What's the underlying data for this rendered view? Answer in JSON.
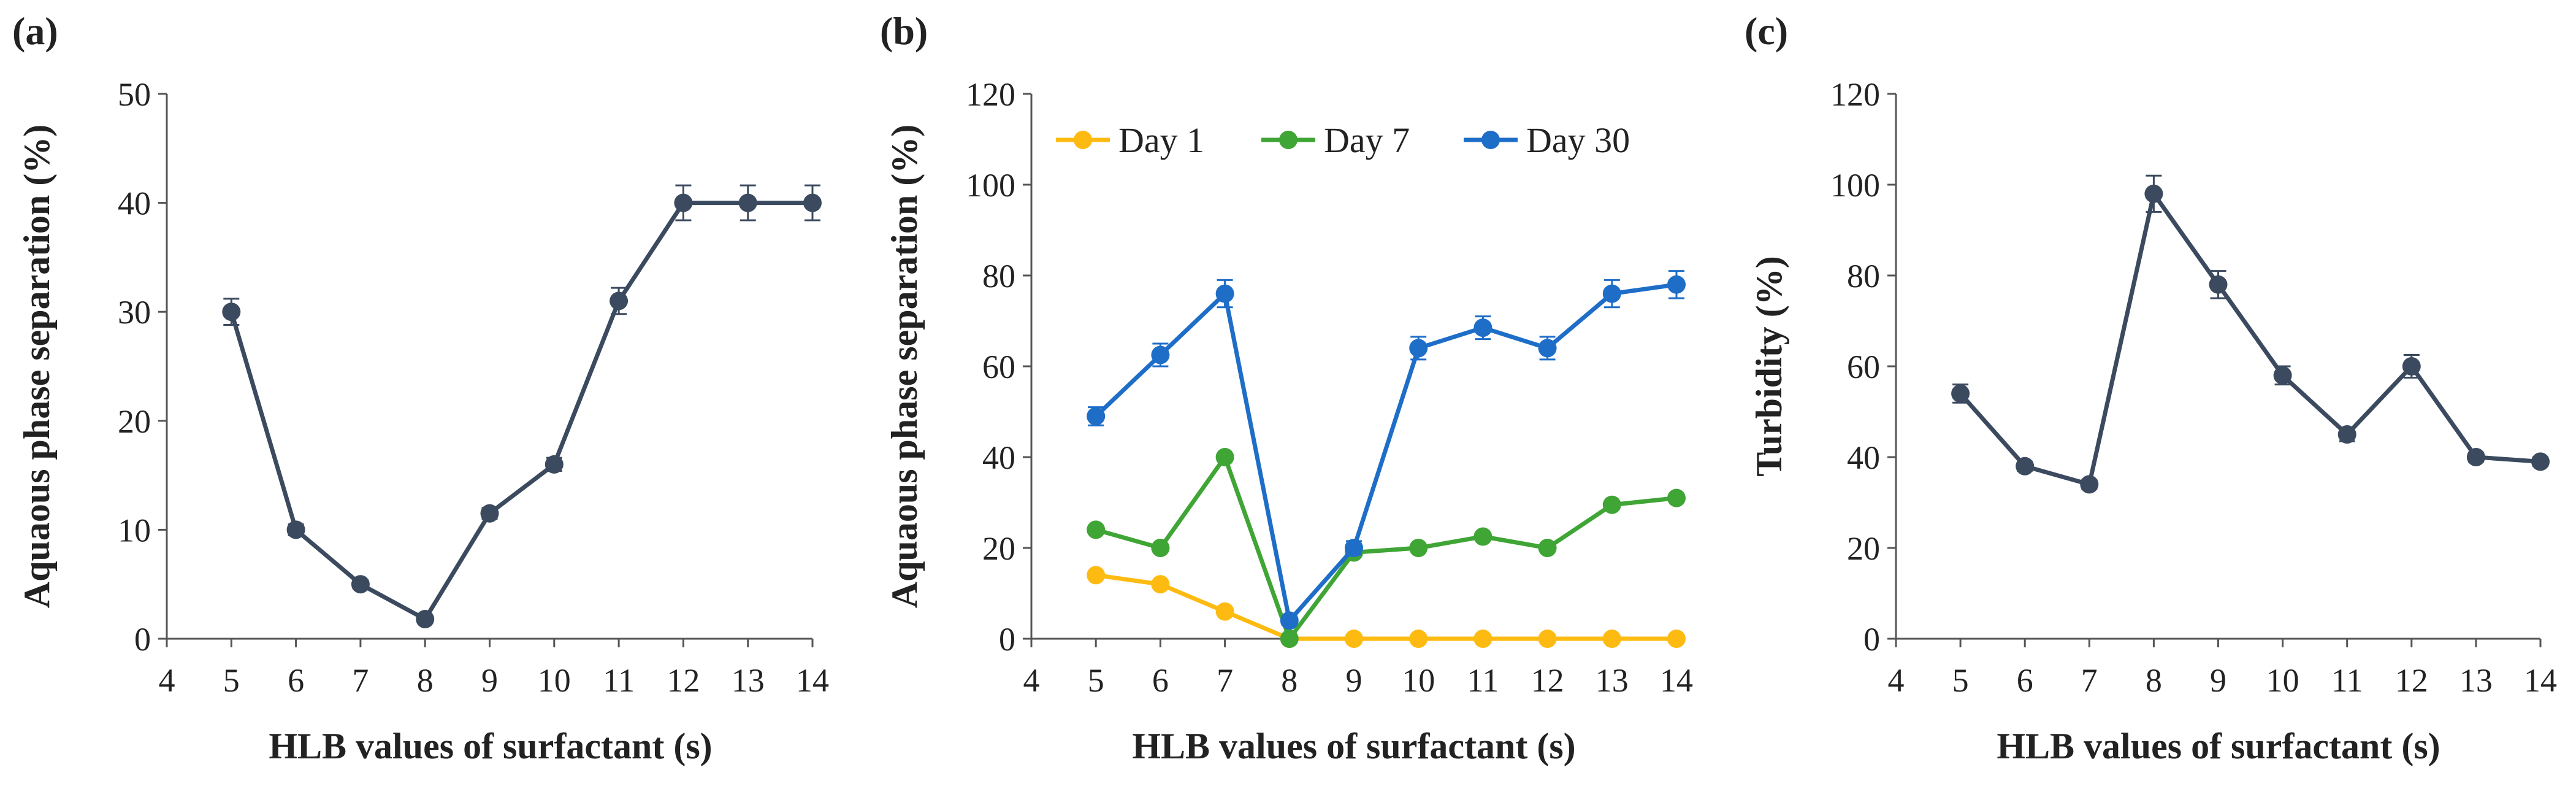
{
  "colors": {
    "main": "#3b4a5e",
    "day1": "#fdbb12",
    "day7": "#3fa535",
    "day30": "#1e6ec8",
    "axis": "#555555"
  },
  "chart_data": [
    {
      "panel": "(a)",
      "type": "line",
      "xlabel": "HLB values of surfactant (s)",
      "ylabel": "Aquaous phase separation (%)",
      "xlim": [
        4,
        14
      ],
      "ylim": [
        0,
        50
      ],
      "xticks": [
        4,
        5,
        6,
        7,
        8,
        9,
        10,
        11,
        12,
        13,
        14
      ],
      "yticks": [
        0,
        10,
        20,
        30,
        40,
        50
      ],
      "legend": false,
      "series": [
        {
          "name": "",
          "color_key": "main",
          "x": [
            5,
            6,
            7,
            8,
            9,
            10,
            11,
            12,
            13,
            14
          ],
          "values": [
            30,
            10,
            5,
            1.8,
            11.5,
            16,
            31,
            40,
            40,
            40
          ],
          "errors": [
            1.2,
            0.5,
            0.4,
            0.3,
            0.5,
            0.6,
            1.2,
            1.6,
            1.6,
            1.6
          ]
        }
      ]
    },
    {
      "panel": "(b)",
      "type": "line",
      "xlabel": "HLB values of surfactant (s)",
      "ylabel": "Aquaous phase separation (%)",
      "xlim": [
        4,
        14
      ],
      "ylim": [
        0,
        120
      ],
      "xticks": [
        4,
        5,
        6,
        7,
        8,
        9,
        10,
        11,
        12,
        13,
        14
      ],
      "yticks": [
        0,
        20,
        40,
        60,
        80,
        100,
        120
      ],
      "legend": true,
      "legend_position": "top-left",
      "series": [
        {
          "name": "Day 1",
          "color_key": "day1",
          "x": [
            5,
            6,
            7,
            8,
            9,
            10,
            11,
            12,
            13,
            14
          ],
          "values": [
            14,
            12,
            6,
            0,
            0,
            0,
            0,
            0,
            0,
            0
          ],
          "errors": [
            0,
            0,
            0,
            0,
            0,
            0,
            0,
            0,
            0,
            0
          ]
        },
        {
          "name": "Day 7",
          "color_key": "day7",
          "x": [
            5,
            6,
            7,
            8,
            9,
            10,
            11,
            12,
            13,
            14
          ],
          "values": [
            24,
            20,
            40,
            0,
            19,
            20,
            22.5,
            20,
            29.5,
            31
          ],
          "errors": [
            0,
            0,
            0,
            0,
            0,
            0,
            0,
            0,
            0,
            0
          ]
        },
        {
          "name": "Day 30",
          "color_key": "day30",
          "x": [
            5,
            6,
            7,
            8,
            9,
            10,
            11,
            12,
            13,
            14
          ],
          "values": [
            49,
            62.5,
            76,
            4,
            20,
            64,
            68.5,
            64,
            76,
            78
          ],
          "errors": [
            2,
            2.5,
            3,
            1,
            1.5,
            2.5,
            2.5,
            2.5,
            3,
            3
          ]
        }
      ]
    },
    {
      "panel": "(c)",
      "type": "line",
      "xlabel": "HLB values of surfactant (s)",
      "ylabel": "Turbidity (%)",
      "xlim": [
        4,
        14
      ],
      "ylim": [
        0,
        120
      ],
      "xticks": [
        4,
        5,
        6,
        7,
        8,
        9,
        10,
        11,
        12,
        13,
        14
      ],
      "yticks": [
        0,
        20,
        40,
        60,
        80,
        100,
        120
      ],
      "legend": false,
      "series": [
        {
          "name": "",
          "color_key": "main",
          "x": [
            5,
            6,
            7,
            8,
            9,
            10,
            11,
            12,
            13,
            14
          ],
          "values": [
            54,
            38,
            34,
            98,
            78,
            58,
            45,
            60,
            40,
            39
          ],
          "errors": [
            2,
            1,
            1,
            4,
            3,
            2,
            1.5,
            2.5,
            1,
            1
          ]
        }
      ]
    }
  ]
}
